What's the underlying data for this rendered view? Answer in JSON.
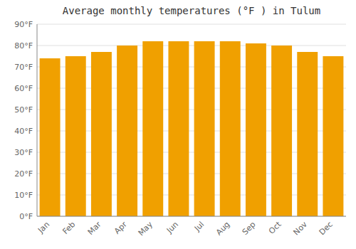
{
  "chart_data": {
    "type": "bar",
    "title": "Average monthly temperatures (°F ) in Tulum",
    "categories": [
      "Jan",
      "Feb",
      "Mar",
      "Apr",
      "May",
      "Jun",
      "Jul",
      "Aug",
      "Sep",
      "Oct",
      "Nov",
      "Dec"
    ],
    "values": [
      74,
      75,
      77,
      80,
      82,
      82,
      82,
      82,
      81,
      80,
      77,
      75
    ],
    "color": "#F0A000",
    "ylim": [
      0,
      90
    ],
    "yticks": [
      {
        "value": 0,
        "label": "0°F"
      },
      {
        "value": 10,
        "label": "10°F"
      },
      {
        "value": 20,
        "label": "20°F"
      },
      {
        "value": 30,
        "label": "30°F"
      },
      {
        "value": 40,
        "label": "40°F"
      },
      {
        "value": 50,
        "label": "50°F"
      },
      {
        "value": 60,
        "label": "60°F"
      },
      {
        "value": 70,
        "label": "70°F"
      },
      {
        "value": 80,
        "label": "80°F"
      },
      {
        "value": 90,
        "label": "90°F"
      }
    ],
    "grid": true
  }
}
